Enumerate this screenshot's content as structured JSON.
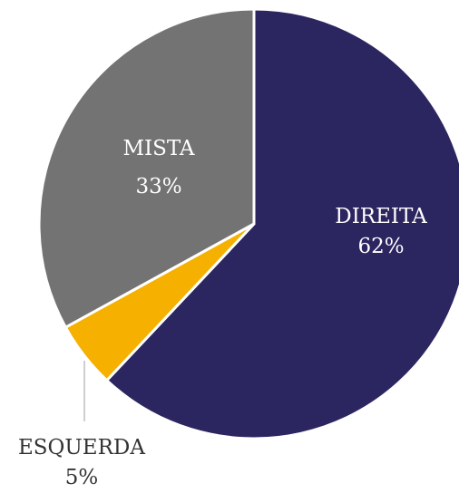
{
  "chart_data": {
    "type": "pie",
    "categories": [
      "DIREITA",
      "ESQUERDA",
      "MISTA"
    ],
    "values": [
      62,
      5,
      33
    ],
    "value_labels": [
      "62%",
      "5%",
      "33%"
    ],
    "colors": [
      "#2b2560",
      "#f5b000",
      "#737373"
    ]
  }
}
